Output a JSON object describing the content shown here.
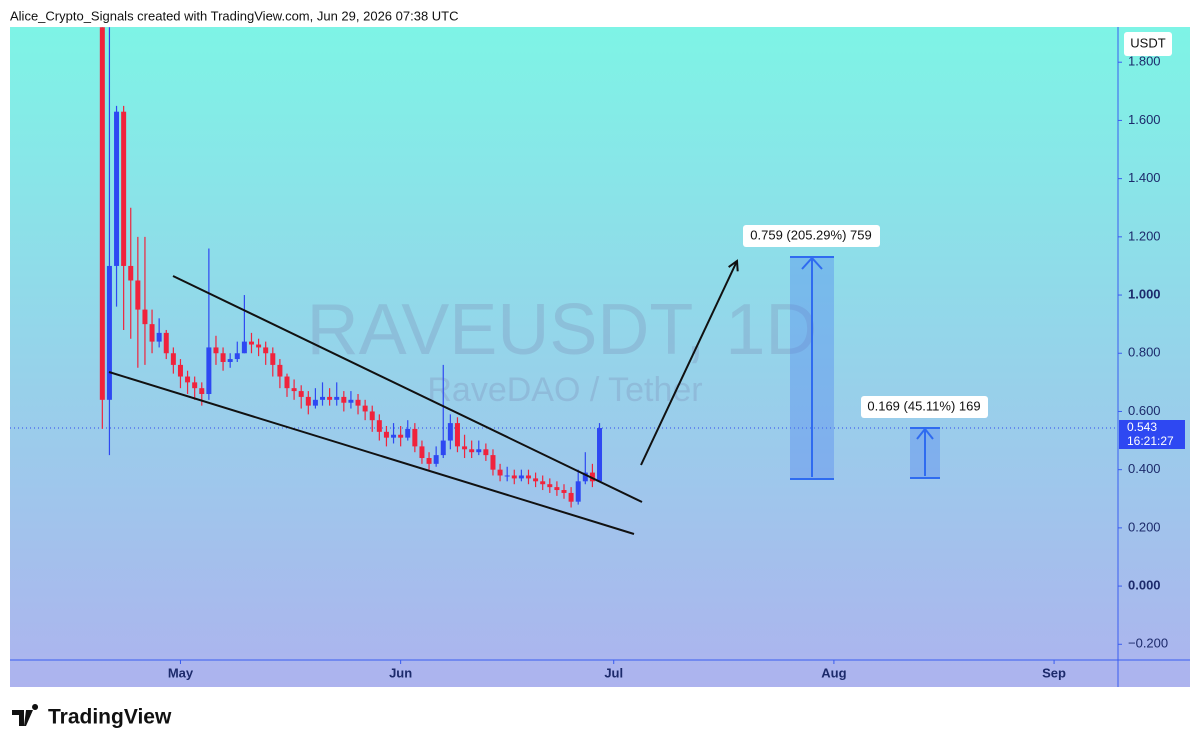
{
  "header": {
    "attribution": "Alice_Crypto_Signals created with TradingView.com, Jun 29, 2026 07:38 UTC"
  },
  "footer": {
    "brand": "TradingView"
  },
  "chart_data": {
    "type": "candlestick",
    "title": "RAVEUSDT, 1D",
    "subtitle": "RaveDAO / Tether",
    "currency": "USDT",
    "countdown": "16:21:27",
    "up_color": "#2e48f2",
    "down_color": "#f0233c",
    "categories": [
      null,
      null,
      null,
      null,
      null,
      null,
      null,
      null,
      null,
      null,
      null,
      null,
      null,
      null,
      null,
      null,
      null,
      null,
      null,
      null,
      null,
      null,
      null,
      null,
      null,
      null,
      null,
      null,
      null,
      null,
      null,
      null,
      null,
      null,
      null,
      null,
      null,
      null,
      null,
      null,
      null,
      null,
      null,
      null,
      null,
      null,
      null,
      null,
      null,
      null,
      null,
      null,
      null,
      null,
      null,
      null,
      null,
      null,
      null,
      null,
      null,
      null,
      null,
      null,
      null,
      null,
      null,
      null,
      null,
      null,
      null
    ],
    "open": [
      1.92,
      0.64,
      1.1,
      1.63,
      1.1,
      1.05,
      0.95,
      0.9,
      0.84,
      0.87,
      0.8,
      0.76,
      0.72,
      0.7,
      0.68,
      0.66,
      0.82,
      0.8,
      0.77,
      0.78,
      0.8,
      0.84,
      0.83,
      0.82,
      0.8,
      0.76,
      0.72,
      0.68,
      0.67,
      0.65,
      0.62,
      0.64,
      0.65,
      0.64,
      0.65,
      0.63,
      0.64,
      0.62,
      0.6,
      0.57,
      0.53,
      0.51,
      0.52,
      0.51,
      0.54,
      0.48,
      0.44,
      0.42,
      0.45,
      0.5,
      0.56,
      0.48,
      0.47,
      0.46,
      0.47,
      0.45,
      0.4,
      0.38,
      0.38,
      0.37,
      0.38,
      0.37,
      0.36,
      0.35,
      0.34,
      0.33,
      0.32,
      0.29,
      0.36,
      0.39,
      0.36
    ],
    "high": [
      1.92,
      1.92,
      1.65,
      1.65,
      1.3,
      1.2,
      1.2,
      0.95,
      0.92,
      0.88,
      0.82,
      0.78,
      0.74,
      0.72,
      0.7,
      1.16,
      0.86,
      0.82,
      0.8,
      0.84,
      1.0,
      0.87,
      0.85,
      0.84,
      0.82,
      0.78,
      0.73,
      0.71,
      0.69,
      0.67,
      0.68,
      0.7,
      0.68,
      0.7,
      0.67,
      0.67,
      0.66,
      0.64,
      0.62,
      0.59,
      0.55,
      0.56,
      0.55,
      0.57,
      0.56,
      0.5,
      0.46,
      0.48,
      0.76,
      0.59,
      0.58,
      0.52,
      0.5,
      0.5,
      0.49,
      0.47,
      0.42,
      0.41,
      0.4,
      0.4,
      0.4,
      0.39,
      0.38,
      0.37,
      0.36,
      0.35,
      0.34,
      0.4,
      0.46,
      0.42,
      0.56
    ],
    "low": [
      0.54,
      0.45,
      0.96,
      0.88,
      0.85,
      0.75,
      0.76,
      0.8,
      0.82,
      0.78,
      0.73,
      0.68,
      0.66,
      0.64,
      0.62,
      0.64,
      0.76,
      0.74,
      0.75,
      0.77,
      0.8,
      0.8,
      0.79,
      0.76,
      0.72,
      0.68,
      0.65,
      0.64,
      0.61,
      0.59,
      0.61,
      0.62,
      0.62,
      0.62,
      0.6,
      0.61,
      0.59,
      0.57,
      0.53,
      0.5,
      0.48,
      0.49,
      0.48,
      0.5,
      0.46,
      0.42,
      0.4,
      0.41,
      0.44,
      0.47,
      0.46,
      0.44,
      0.44,
      0.45,
      0.43,
      0.38,
      0.36,
      0.36,
      0.35,
      0.36,
      0.35,
      0.34,
      0.33,
      0.32,
      0.31,
      0.3,
      0.27,
      0.28,
      0.35,
      0.34,
      0.36
    ],
    "close": [
      0.64,
      1.1,
      1.63,
      1.1,
      1.05,
      0.95,
      0.9,
      0.84,
      0.87,
      0.8,
      0.76,
      0.72,
      0.7,
      0.68,
      0.66,
      0.82,
      0.8,
      0.77,
      0.78,
      0.8,
      0.84,
      0.83,
      0.82,
      0.8,
      0.76,
      0.72,
      0.68,
      0.67,
      0.65,
      0.62,
      0.64,
      0.65,
      0.64,
      0.65,
      0.63,
      0.64,
      0.62,
      0.6,
      0.57,
      0.53,
      0.51,
      0.52,
      0.51,
      0.54,
      0.48,
      0.44,
      0.42,
      0.45,
      0.5,
      0.56,
      0.48,
      0.47,
      0.46,
      0.47,
      0.45,
      0.4,
      0.38,
      0.38,
      0.37,
      0.38,
      0.37,
      0.36,
      0.35,
      0.34,
      0.33,
      0.32,
      0.29,
      0.36,
      0.39,
      0.36,
      0.543
    ],
    "xlim": [
      -13,
      143
    ],
    "xticks": [
      {
        "value": 11,
        "label": "May"
      },
      {
        "value": 42,
        "label": "Jun"
      },
      {
        "value": 72,
        "label": "Jul"
      },
      {
        "value": 103,
        "label": "Aug"
      },
      {
        "value": 134,
        "label": "Sep"
      }
    ],
    "ylim": [
      -0.254,
      1.921
    ],
    "yticks": [
      {
        "value": -0.2,
        "label": "−0.200"
      },
      {
        "value": 0,
        "label": "0.000"
      },
      {
        "value": 0.2,
        "label": "0.200"
      },
      {
        "value": 0.4,
        "label": "0.400"
      },
      {
        "value": 0.6,
        "label": "0.600"
      },
      {
        "value": 0.8,
        "label": "0.800"
      },
      {
        "value": 1,
        "label": "1.000"
      },
      {
        "value": 1.2,
        "label": "1.200"
      },
      {
        "value": 1.4,
        "label": "1.400"
      },
      {
        "value": 1.6,
        "label": "1.600"
      },
      {
        "value": 1.8,
        "label": "1.800"
      }
    ],
    "annotations": [
      {
        "label": "0.759 (205.29%) 759"
      },
      {
        "label": "0.169 (45.11%) 169"
      }
    ]
  }
}
